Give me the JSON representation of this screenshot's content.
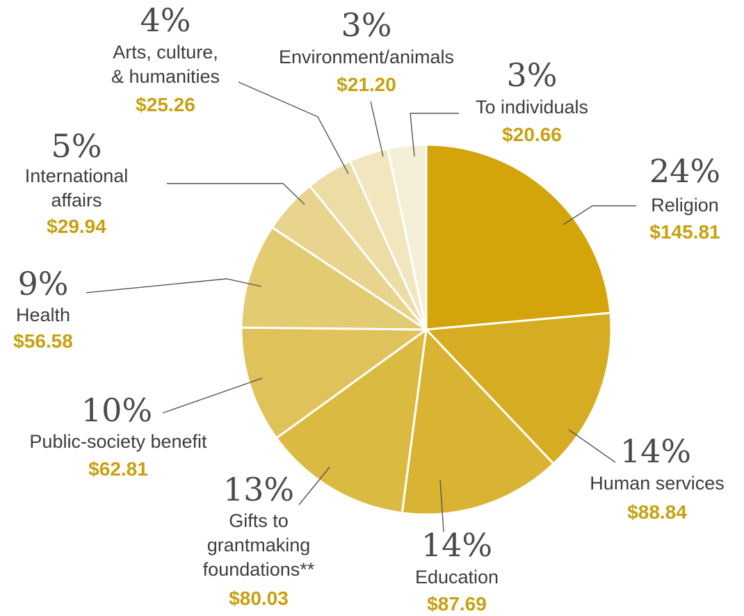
{
  "chart_data": {
    "type": "pie",
    "slices": [
      {
        "category": "Religion",
        "percent_label": "24%",
        "percent": 24,
        "amount": "$145.81",
        "value": 145.81,
        "color": "#d3a50b",
        "label_lines": [
          "Religion"
        ]
      },
      {
        "category": "Human services",
        "percent_label": "14%",
        "percent": 14,
        "amount": "$88.84",
        "value": 88.84,
        "color": "#d6ad22",
        "label_lines": [
          "Human services"
        ]
      },
      {
        "category": "Education",
        "percent_label": "14%",
        "percent": 14,
        "amount": "$87.69",
        "value": 87.69,
        "color": "#d9b432",
        "label_lines": [
          "Education"
        ]
      },
      {
        "category": "Gifts to grantmaking foundations**",
        "percent_label": "13%",
        "percent": 13,
        "amount": "$80.03",
        "value": 80.03,
        "color": "#dbba42",
        "label_lines": [
          "Gifts to",
          "grantmaking",
          "foundations**"
        ]
      },
      {
        "category": "Public-society benefit",
        "percent_label": "10%",
        "percent": 10,
        "amount": "$62.81",
        "value": 62.81,
        "color": "#e0c25a",
        "label_lines": [
          "Public-society benefit"
        ]
      },
      {
        "category": "Health",
        "percent_label": "9%",
        "percent": 9,
        "amount": "$56.58",
        "value": 56.58,
        "color": "#e3cb72",
        "label_lines": [
          "Health"
        ]
      },
      {
        "category": "International affairs",
        "percent_label": "5%",
        "percent": 5,
        "amount": "$29.94",
        "value": 29.94,
        "color": "#e8d48d",
        "label_lines": [
          "International",
          "affairs"
        ]
      },
      {
        "category": "Arts, culture, & humanities",
        "percent_label": "4%",
        "percent": 4,
        "amount": "$25.26",
        "value": 25.26,
        "color": "#ecdca6",
        "label_lines": [
          "Arts, culture,",
          "& humanities"
        ]
      },
      {
        "category": "Environment/animals",
        "percent_label": "3%",
        "percent": 3,
        "amount": "$21.20",
        "value": 21.2,
        "color": "#f1e6be",
        "label_lines": [
          "Environment/animals"
        ]
      },
      {
        "category": "To individuals",
        "percent_label": "3%",
        "percent": 3,
        "amount": "$20.66",
        "value": 20.66,
        "color": "#f6efd8",
        "label_lines": [
          "To individuals"
        ]
      }
    ],
    "amount_color": "#c9a00e",
    "start": "12 o'clock, clockwise"
  }
}
